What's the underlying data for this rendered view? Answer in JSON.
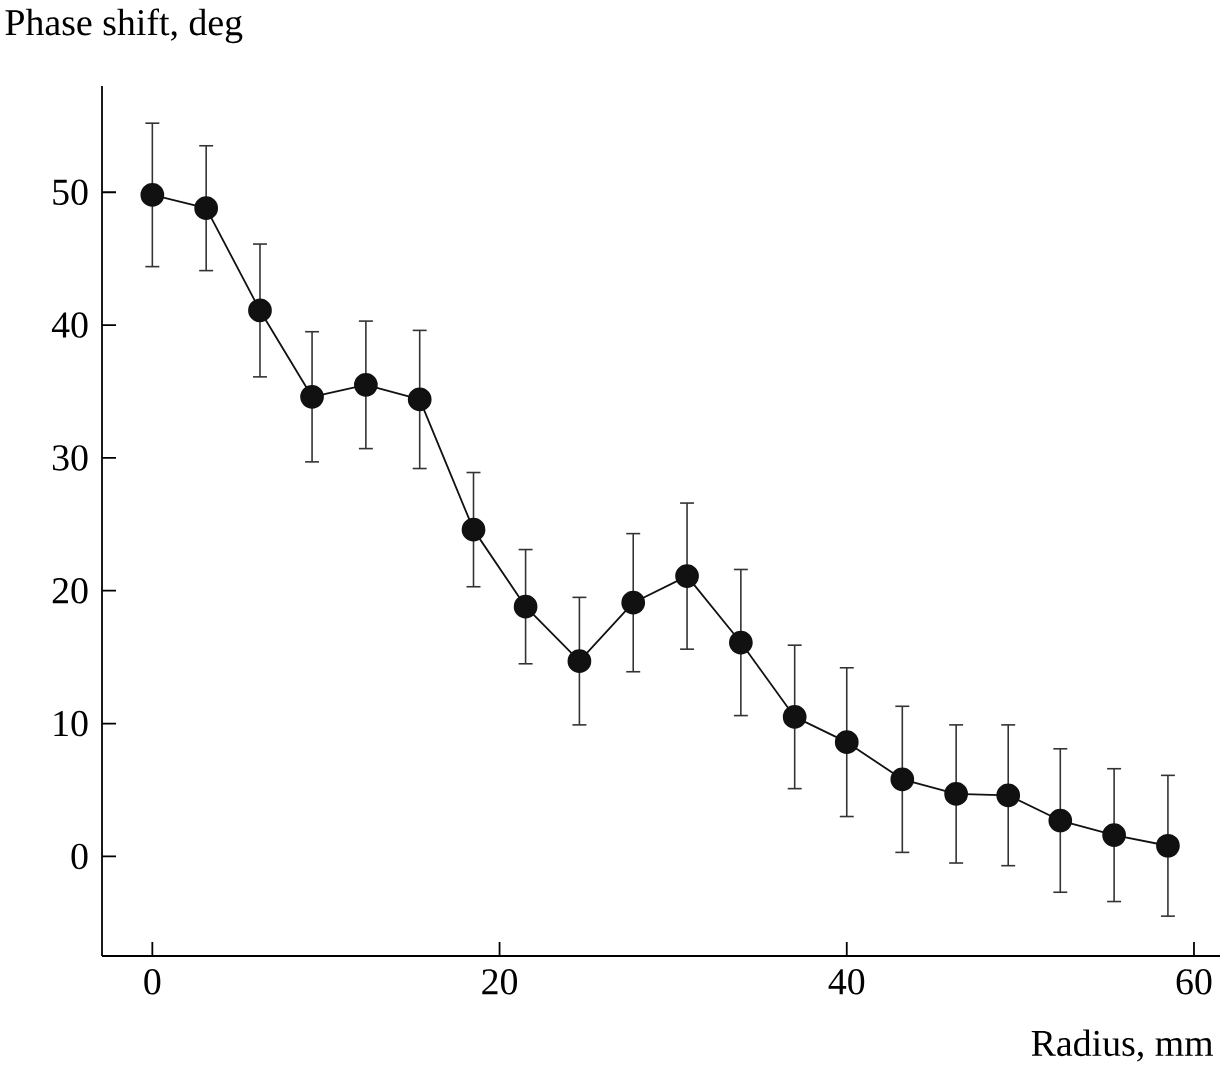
{
  "chart_data": {
    "type": "line",
    "xlabel": "Radius, mm",
    "ylabel": "Phase shift, deg",
    "x": [
      0,
      3.1,
      6.2,
      9.2,
      12.3,
      15.4,
      18.5,
      21.5,
      24.6,
      27.7,
      30.8,
      33.9,
      37.0,
      40.0,
      43.2,
      46.3,
      49.3,
      52.3,
      55.4,
      58.5
    ],
    "values": [
      49.8,
      48.8,
      41.1,
      34.6,
      35.5,
      34.4,
      24.6,
      18.8,
      14.7,
      19.1,
      21.1,
      16.1,
      10.5,
      8.6,
      5.8,
      4.7,
      4.6,
      2.7,
      1.6,
      0.8
    ],
    "errors": [
      5.4,
      4.7,
      5.0,
      4.9,
      4.8,
      5.2,
      4.3,
      4.3,
      4.8,
      5.2,
      5.5,
      5.5,
      5.4,
      5.6,
      5.5,
      5.2,
      5.3,
      5.4,
      5.0,
      5.3
    ],
    "color": "#111111",
    "marker": "circle",
    "line_style": "solid",
    "xlim": [
      -2.9,
      61.5
    ],
    "ylim": [
      -7.5,
      58
    ],
    "xticks": [
      0,
      20,
      40,
      60
    ],
    "yticks": [
      0,
      10,
      20,
      30,
      40,
      50
    ]
  }
}
